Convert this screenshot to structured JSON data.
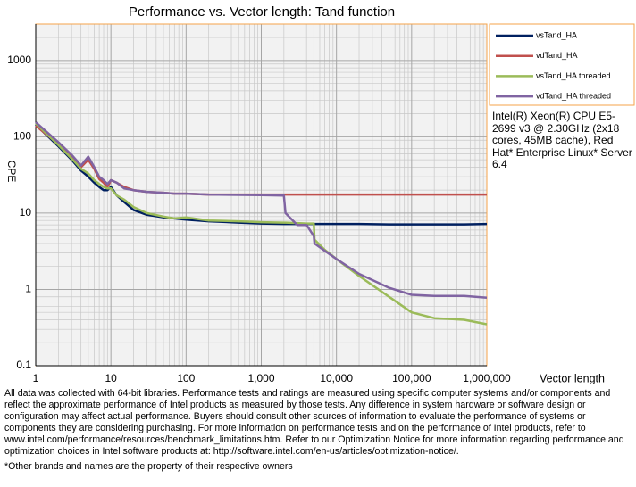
{
  "chart_data": {
    "type": "line",
    "title": "Performance vs. Vector length: Tand function",
    "x_label": "Vector length",
    "y_label": "CPE",
    "log_x": true,
    "log_y": true,
    "grid": true,
    "xlim": [
      1,
      1000000
    ],
    "ylim": [
      0.1,
      3000
    ],
    "xticks": [
      1,
      10,
      100,
      {
        "value": 1000,
        "label": "1,000"
      },
      {
        "value": 10000,
        "label": "10,000"
      },
      {
        "value": 100000,
        "label": "100,000"
      },
      {
        "value": 1000000,
        "label": "1,000,000"
      }
    ],
    "yticks": [
      0.1,
      1,
      10,
      100,
      1000
    ],
    "x": [
      1,
      2,
      3,
      4,
      5,
      6,
      7,
      8,
      9,
      10,
      12,
      15,
      20,
      30,
      50,
      70,
      100,
      200,
      500,
      1000,
      2000,
      2100,
      3000,
      4000,
      5000,
      5100,
      7000,
      10000,
      20000,
      50000,
      100000,
      200000,
      500000,
      1000000
    ],
    "series": [
      {
        "name": "vsTand_HA",
        "color": "#002060",
        "values": [
          144,
          75,
          50,
          36,
          30,
          25,
          22,
          20,
          20,
          22,
          17,
          14,
          11,
          9.5,
          8.8,
          8.5,
          8.2,
          7.8,
          7.5,
          7.3,
          7.2,
          7.2,
          7.2,
          7.2,
          7.2,
          7.2,
          7.2,
          7.2,
          7.2,
          7.1,
          7.1,
          7.1,
          7.1,
          7.2
        ]
      },
      {
        "name": "vdTand_HA",
        "color": "#c0504d",
        "values": [
          140,
          80,
          55,
          40,
          50,
          38,
          28,
          25,
          22,
          27,
          25,
          22,
          20,
          19,
          18.5,
          18,
          18,
          17.5,
          17.5,
          17.5,
          17.5,
          17.5,
          17.5,
          17.5,
          17.5,
          17.5,
          17.5,
          17.5,
          17.5,
          17.5,
          17.5,
          17.5,
          17.5,
          17.5
        ]
      },
      {
        "name": "vsTand_HA threaded",
        "color": "#9bbb59",
        "values": [
          150,
          78,
          52,
          38,
          33,
          27,
          24,
          22,
          21,
          21,
          17,
          15,
          12,
          10,
          9,
          8.5,
          8.8,
          8,
          7.8,
          7.6,
          7.5,
          7.5,
          7.4,
          7.3,
          7.3,
          4.5,
          3.3,
          2.5,
          1.5,
          0.8,
          0.5,
          0.42,
          0.4,
          0.35
        ]
      },
      {
        "name": "vdTand_HA threaded",
        "color": "#8064a2",
        "values": [
          155,
          85,
          58,
          42,
          55,
          40,
          30,
          27,
          24,
          27,
          25,
          21,
          20,
          19,
          18.5,
          18,
          18,
          17.5,
          17.3,
          17.2,
          17,
          10,
          7,
          7,
          5,
          4,
          3.2,
          2.5,
          1.6,
          1.05,
          0.85,
          0.82,
          0.82,
          0.78
        ]
      }
    ],
    "annotation": "Intel(R) Xeon(R) CPU E5-2699 v3 @ 2.30GHz (2x18 cores, 45MB cache), Red Hat* Enterprise Linux* Server 6.4"
  },
  "footer": "All data was collected with 64-bit libraries. Performance tests and ratings are measured using specific computer systems and/or components and reflect the approximate performance of Intel products as measured by those tests. Any difference in system hardware or software design or configuration may affect actual performance. Buyers should consult other sources of information to evaluate the performance of systems or components they are considering purchasing. For more information on performance tests and on the performance of Intel products, refer to www.intel.com/performance/resources/benchmark_limitations.htm. Refer to our Optimization Notice for more information regarding performance and optimization choices in Intel software products at: http://software.intel.com/en-us/articles/optimization-notice/.",
  "footnote": "*Other brands and names are the property of their respective owners"
}
